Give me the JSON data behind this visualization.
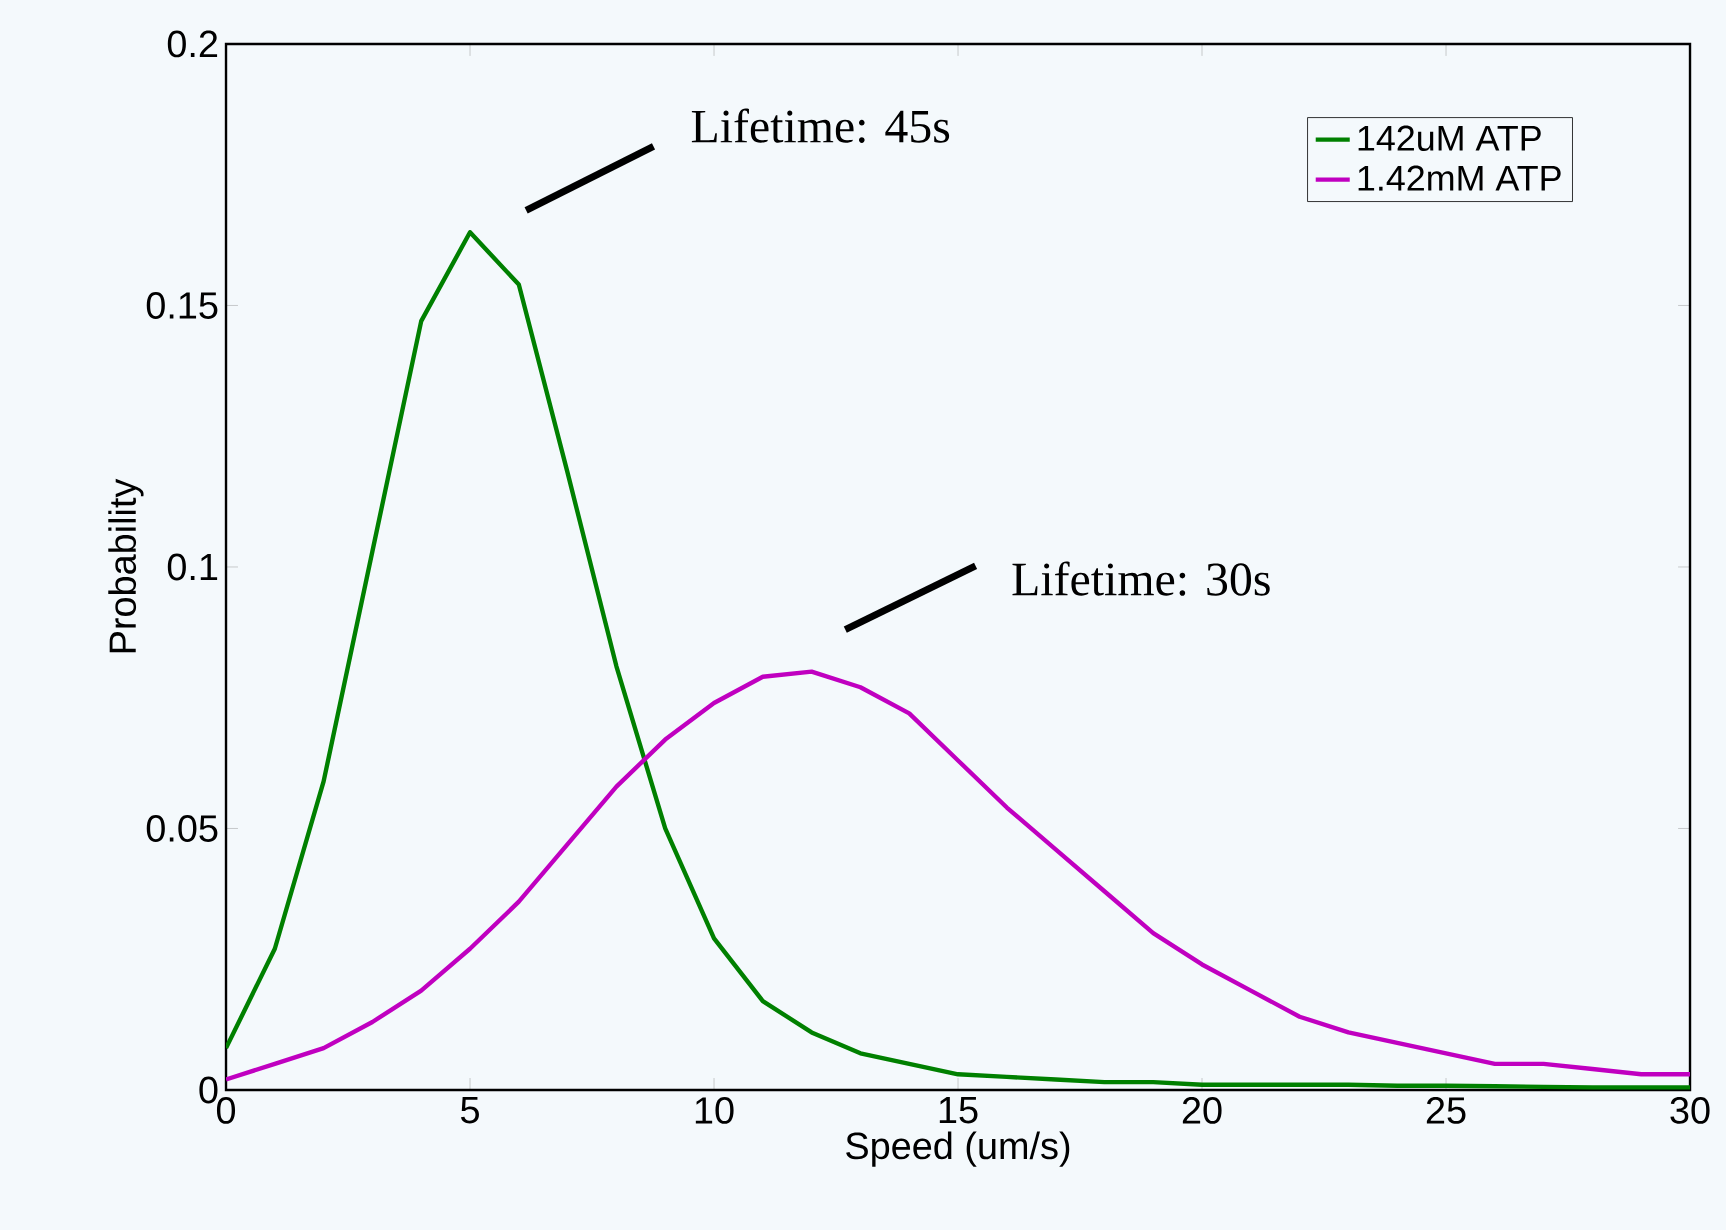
{
  "chart_data": {
    "type": "line",
    "xlabel": "Speed (um/s)",
    "ylabel": "Probability",
    "xlim": [
      0,
      30
    ],
    "ylim": [
      0,
      0.2
    ],
    "xticks": [
      0,
      5,
      10,
      15,
      20,
      25,
      30
    ],
    "yticks": [
      0,
      0.05,
      0.1,
      0.15,
      0.2
    ],
    "grid": false,
    "legend": "top right",
    "marker": "none",
    "line_style": "solid",
    "x": [
      0,
      1,
      2,
      3,
      4,
      5,
      6,
      7,
      8,
      9,
      10,
      11,
      12,
      13,
      14,
      15,
      16,
      17,
      18,
      19,
      20,
      21,
      22,
      23,
      24,
      25,
      26,
      27,
      28,
      29,
      30
    ],
    "series": [
      {
        "name": "142uM ATP",
        "color": "#008000",
        "values": [
          0.008,
          0.027,
          0.059,
          0.103,
          0.147,
          0.164,
          0.154,
          0.118,
          0.081,
          0.05,
          0.029,
          0.017,
          0.011,
          0.007,
          0.005,
          0.003,
          0.0025,
          0.002,
          0.0015,
          0.0015,
          0.001,
          0.001,
          0.001,
          0.001,
          0.0008,
          0.0008,
          0.0007,
          0.0006,
          0.0005,
          0.0005,
          0.0005
        ]
      },
      {
        "name": "1.42mM ATP",
        "color": "#c000c0",
        "values": [
          0.002,
          0.005,
          0.008,
          0.013,
          0.019,
          0.027,
          0.036,
          0.047,
          0.058,
          0.067,
          0.074,
          0.079,
          0.08,
          0.077,
          0.072,
          0.063,
          0.054,
          0.046,
          0.038,
          0.03,
          0.024,
          0.019,
          0.014,
          0.011,
          0.009,
          0.007,
          0.005,
          0.005,
          0.004,
          0.003,
          0.003
        ]
      }
    ],
    "annotations": [
      "Lifetime: 45s",
      "Lifetime: 30s"
    ]
  }
}
